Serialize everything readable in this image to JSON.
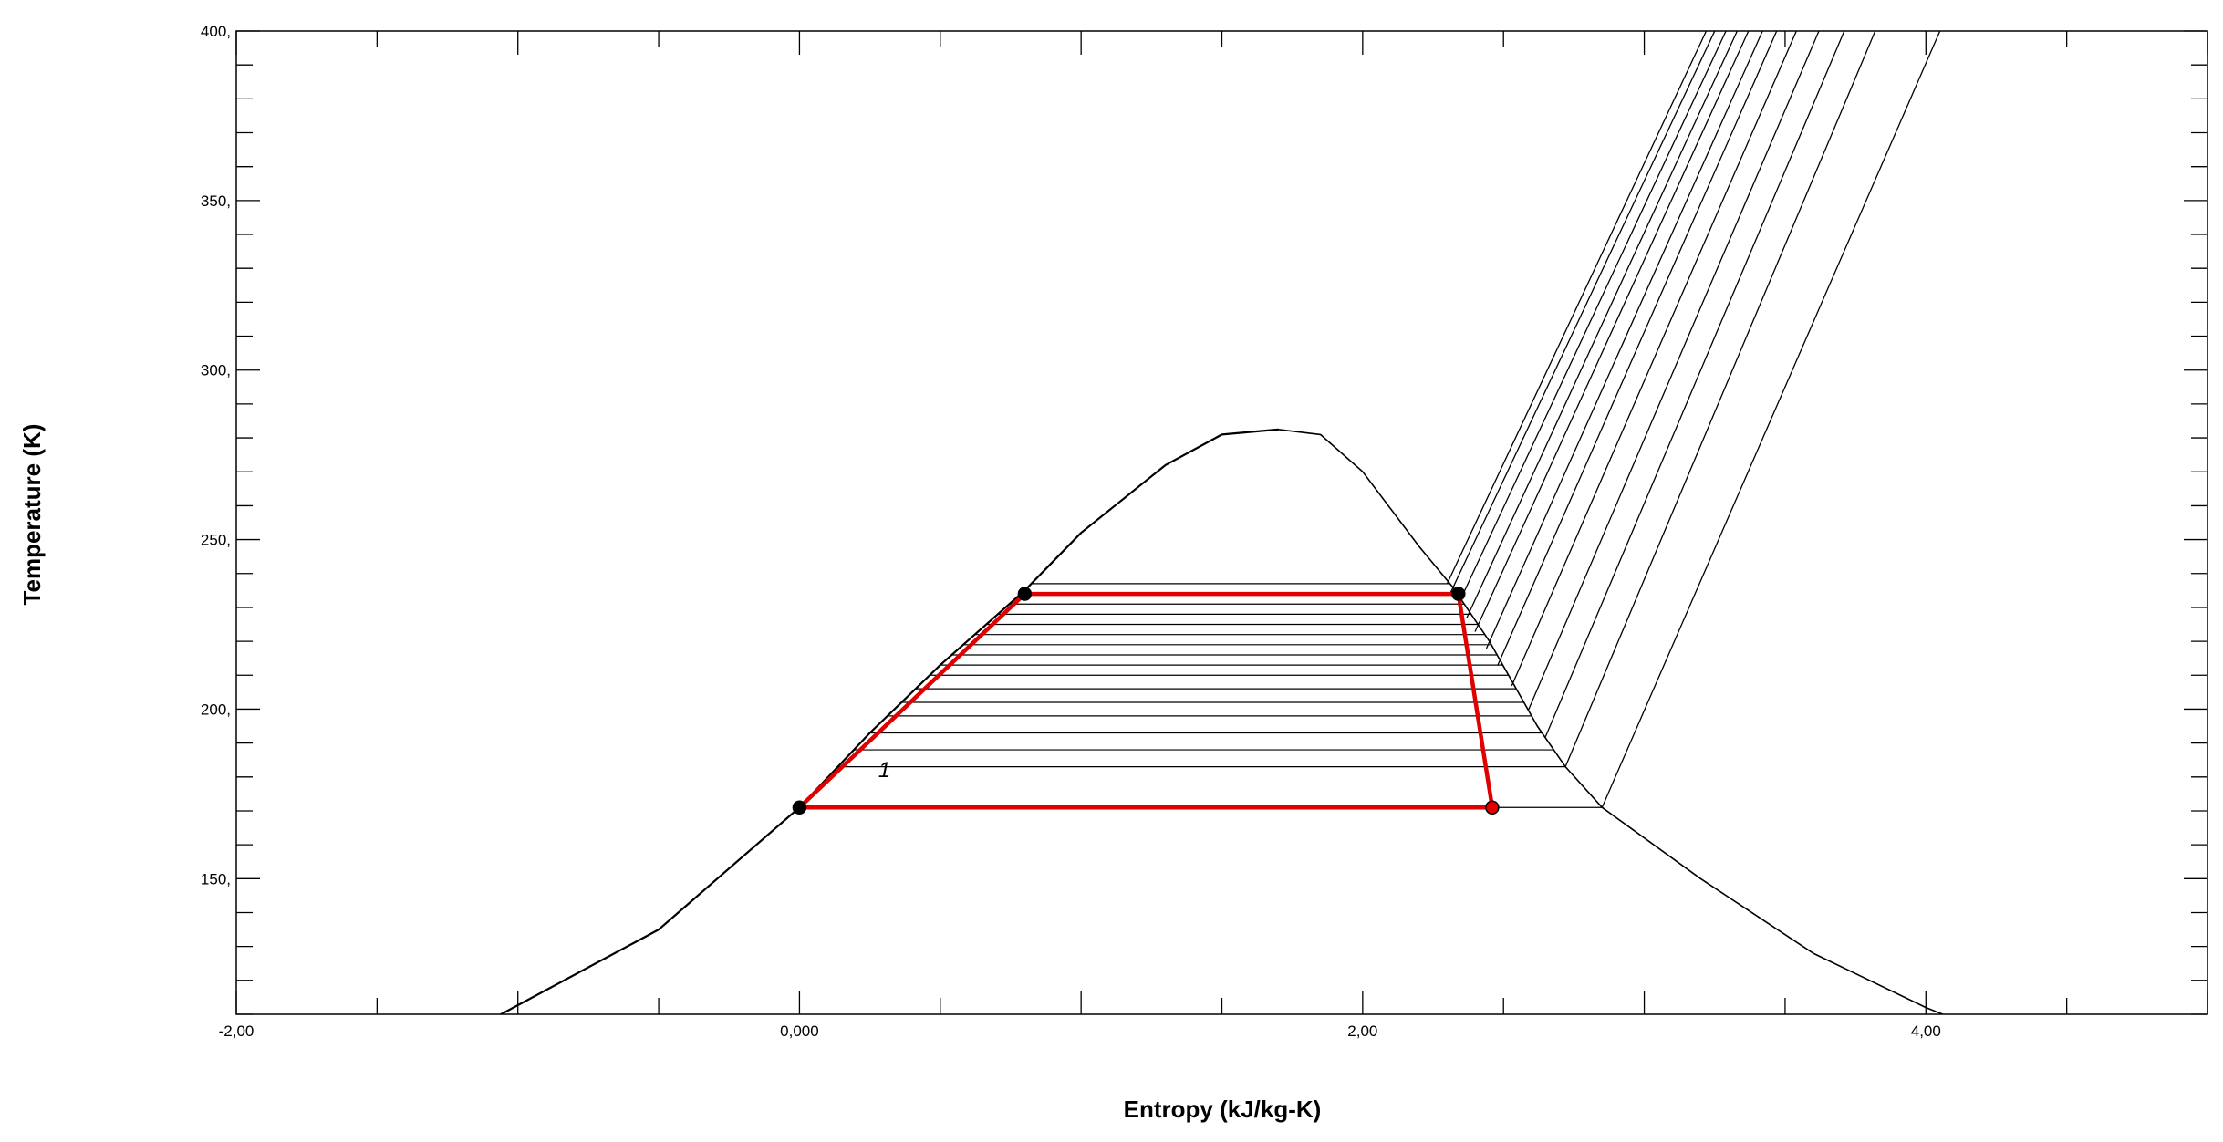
{
  "chart_data": {
    "type": "line",
    "title": "",
    "xlabel": "Entropy (kJ/kg-K)",
    "ylabel": "Temperature (K)",
    "xlim": [
      -2.0,
      5.0
    ],
    "ylim": [
      110,
      400
    ],
    "x_ticks": [
      -2.0,
      0.0,
      2.0,
      4.0
    ],
    "x_tick_labels": [
      "-2,00",
      "0,000",
      "2,00",
      "4,00"
    ],
    "y_ticks": [
      150,
      200,
      250,
      300,
      350,
      400
    ],
    "y_tick_labels": [
      "150,",
      "200,",
      "250,",
      "300,",
      "350,",
      "400,"
    ],
    "x_minor_step": 0.5,
    "y_minor_step": 10,
    "grid": false,
    "saturation_dome": {
      "liquid": [
        [
          -1.06,
          110
        ],
        [
          -0.5,
          135
        ],
        [
          0.0,
          171
        ],
        [
          0.25,
          193
        ],
        [
          0.5,
          213
        ],
        [
          0.8,
          235
        ],
        [
          1.0,
          252
        ],
        [
          1.3,
          272
        ],
        [
          1.5,
          281
        ],
        [
          1.7,
          282.5
        ]
      ],
      "vapor": [
        [
          1.7,
          282.5
        ],
        [
          1.85,
          281
        ],
        [
          2.0,
          270
        ],
        [
          2.2,
          248
        ],
        [
          2.32,
          236
        ],
        [
          2.45,
          220
        ],
        [
          2.62,
          195
        ],
        [
          2.72,
          183
        ],
        [
          2.85,
          171
        ],
        [
          3.2,
          150
        ],
        [
          3.6,
          128
        ],
        [
          4.0,
          112
        ],
        [
          4.06,
          110
        ]
      ]
    },
    "isotherms_two_phase": [
      171,
      183,
      188,
      193,
      198,
      202,
      206,
      210,
      213,
      216,
      219,
      222,
      225,
      228,
      231,
      234,
      237
    ],
    "isobars_superheated": [
      [
        [
          2.3,
          237
        ],
        [
          3.22,
          400
        ]
      ],
      [
        [
          2.31,
          234
        ],
        [
          3.25,
          400
        ]
      ],
      [
        [
          2.34,
          231
        ],
        [
          3.29,
          400
        ]
      ],
      [
        [
          2.37,
          227
        ],
        [
          3.33,
          400
        ]
      ],
      [
        [
          2.4,
          223
        ],
        [
          3.37,
          400
        ]
      ],
      [
        [
          2.44,
          218
        ],
        [
          3.42,
          400
        ]
      ],
      [
        [
          2.48,
          213
        ],
        [
          3.47,
          400
        ]
      ],
      [
        [
          2.53,
          207
        ],
        [
          3.54,
          400
        ]
      ],
      [
        [
          2.59,
          200
        ],
        [
          3.62,
          400
        ]
      ],
      [
        [
          2.65,
          192
        ],
        [
          3.71,
          400
        ]
      ],
      [
        [
          2.72,
          183
        ],
        [
          3.82,
          400
        ]
      ],
      [
        [
          2.85,
          171
        ],
        [
          4.05,
          400
        ]
      ]
    ],
    "cycle": {
      "color": "#e00000",
      "points": [
        {
          "s": 0.0,
          "T": 171
        },
        {
          "s": 0.8,
          "T": 234
        },
        {
          "s": 2.34,
          "T": 234
        },
        {
          "s": 2.46,
          "T": 171
        }
      ],
      "path": [
        [
          0.0,
          171
        ],
        [
          0.8,
          234
        ],
        [
          2.34,
          234
        ],
        [
          2.46,
          171
        ],
        [
          0.0,
          171
        ]
      ]
    },
    "annotation": {
      "text": "1",
      "s": 0.28,
      "T": 180
    }
  }
}
